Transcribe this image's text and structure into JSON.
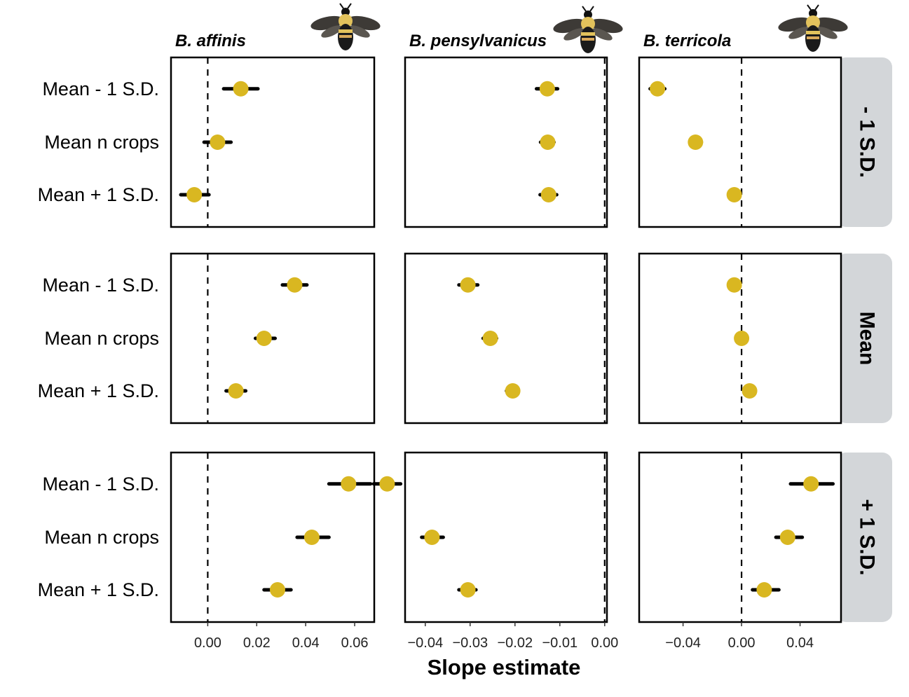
{
  "chart_data": {
    "type": "forest",
    "xlabel": "Slope estimate",
    "y_categories": [
      "Mean - 1 S.D.",
      "Mean n crops",
      "Mean + 1 S.D."
    ],
    "row_facets": [
      "- 1 S.D.",
      "Mean",
      "+ 1 S.D."
    ],
    "reference_line_x": 0,
    "colors": {
      "point": "#D9B721",
      "interval": "#000000",
      "strip": "#D3D6D9",
      "panel_border": "#000000"
    },
    "columns": [
      {
        "species": "B. affinis",
        "icon": "bumblebee-affinis-icon",
        "xlim": [
          -0.015,
          0.068
        ],
        "ticks": [
          0.0,
          0.02,
          0.04,
          0.06
        ],
        "tick_labels": [
          "0.00",
          "0.02",
          "0.04",
          "0.06"
        ],
        "facets": [
          {
            "row": "- 1 S.D.",
            "points": [
              {
                "label": "Mean - 1 S.D.",
                "estimate": 0.0135,
                "lower": 0.0065,
                "upper": 0.0205
              },
              {
                "label": "Mean n crops",
                "estimate": 0.004,
                "lower": -0.0015,
                "upper": 0.0095
              },
              {
                "label": "Mean + 1 S.D.",
                "estimate": -0.0055,
                "lower": -0.011,
                "upper": 0.0005
              }
            ]
          },
          {
            "row": "Mean",
            "points": [
              {
                "label": "Mean - 1 S.D.",
                "estimate": 0.0355,
                "lower": 0.0305,
                "upper": 0.0405
              },
              {
                "label": "Mean n crops",
                "estimate": 0.023,
                "lower": 0.0195,
                "upper": 0.0275
              },
              {
                "label": "Mean + 1 S.D.",
                "estimate": 0.0115,
                "lower": 0.0075,
                "upper": 0.0155
              }
            ]
          },
          {
            "row": "+ 1 S.D.",
            "points": [
              {
                "label": "Mean - 1 S.D.",
                "estimate": 0.0575,
                "lower": 0.0495,
                "upper": 0.0665
              },
              {
                "label": "Mean n crops",
                "estimate": 0.0425,
                "lower": 0.0365,
                "upper": 0.0495
              },
              {
                "label": "Mean + 1 S.D.",
                "estimate": 0.0285,
                "lower": 0.023,
                "upper": 0.034
              }
            ]
          }
        ]
      },
      {
        "species": "B. pensylvanicus",
        "icon": "bumblebee-pensylvanicus-icon",
        "xlim": [
          -0.0445,
          0.0005
        ],
        "ticks": [
          -0.04,
          -0.03,
          -0.02,
          -0.01,
          0.0
        ],
        "tick_labels": [
          "−0.04",
          "−0.03",
          "−0.02",
          "−0.01",
          "0.00"
        ],
        "facets": [
          {
            "row": "- 1 S.D.",
            "points": [
              {
                "label": "Mean - 1 S.D.",
                "estimate": -0.0128,
                "lower": -0.0152,
                "upper": -0.0105
              },
              {
                "label": "Mean n crops",
                "estimate": -0.0127,
                "lower": -0.0143,
                "upper": -0.0113
              },
              {
                "label": "Mean + 1 S.D.",
                "estimate": -0.0125,
                "lower": -0.0144,
                "upper": -0.0107
              }
            ]
          },
          {
            "row": "Mean",
            "points": [
              {
                "label": "Mean - 1 S.D.",
                "estimate": -0.0305,
                "lower": -0.0325,
                "upper": -0.0283
              },
              {
                "label": "Mean n crops",
                "estimate": -0.0255,
                "lower": -0.0271,
                "upper": -0.0241
              },
              {
                "label": "Mean + 1 S.D.",
                "estimate": -0.0205,
                "lower": -0.0219,
                "upper": -0.0192
              }
            ]
          },
          {
            "row": "+ 1 S.D.",
            "points": [
              {
                "label": "Mean - 1 S.D.",
                "estimate": -0.0485,
                "lower": -0.0515,
                "upper": -0.0455
              },
              {
                "label": "Mean n crops",
                "estimate": -0.0385,
                "lower": -0.0408,
                "upper": -0.036
              },
              {
                "label": "Mean + 1 S.D.",
                "estimate": -0.0305,
                "lower": -0.0325,
                "upper": -0.0287
              }
            ]
          }
        ]
      },
      {
        "species": "B. terricola",
        "icon": "bumblebee-terricola-icon",
        "xlim": [
          -0.07,
          0.068
        ],
        "ticks": [
          -0.04,
          0.0,
          0.04
        ],
        "tick_labels": [
          "−0.04",
          "0.00",
          "0.04"
        ],
        "facets": [
          {
            "row": "- 1 S.D.",
            "points": [
              {
                "label": "Mean - 1 S.D.",
                "estimate": -0.0575,
                "lower": -0.0625,
                "upper": -0.0525
              },
              {
                "label": "Mean n crops",
                "estimate": -0.0315,
                "lower": -0.0355,
                "upper": -0.0275
              },
              {
                "label": "Mean + 1 S.D.",
                "estimate": -0.005,
                "lower": -0.0085,
                "upper": -0.0015
              }
            ]
          },
          {
            "row": "Mean",
            "points": [
              {
                "label": "Mean - 1 S.D.",
                "estimate": -0.005,
                "lower": -0.0085,
                "upper": -0.0015
              },
              {
                "label": "Mean n crops",
                "estimate": 0.0,
                "lower": -0.002,
                "upper": 0.002
              },
              {
                "label": "Mean + 1 S.D.",
                "estimate": 0.0055,
                "lower": 0.0025,
                "upper": 0.0085
              }
            ]
          },
          {
            "row": "+ 1 S.D.",
            "points": [
              {
                "label": "Mean - 1 S.D.",
                "estimate": 0.0475,
                "lower": 0.0335,
                "upper": 0.0625
              },
              {
                "label": "Mean n crops",
                "estimate": 0.0315,
                "lower": 0.0235,
                "upper": 0.0415
              },
              {
                "label": "Mean + 1 S.D.",
                "estimate": 0.0155,
                "lower": 0.0075,
                "upper": 0.0255
              }
            ]
          }
        ]
      }
    ]
  }
}
